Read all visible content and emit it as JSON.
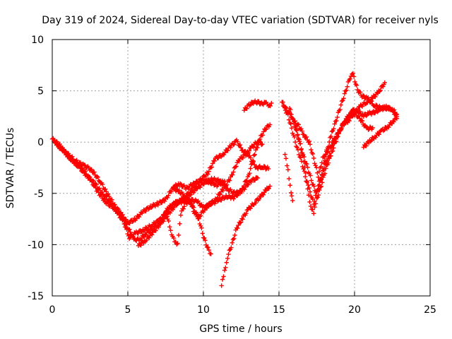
{
  "chart_data": {
    "type": "scatter",
    "title": "Day 319 of 2024, Sidereal Day-to-day VTEC variation (SDTVAR) for receiver nyls",
    "xlabel": "GPS time / hours",
    "ylabel": "SDTVAR / TECUs",
    "xlim": [
      0,
      25
    ],
    "ylim": [
      -15,
      10
    ],
    "xticks": [
      "0",
      "5",
      "10",
      "15",
      "20",
      "25"
    ],
    "yticks": [
      "-15",
      "-10",
      "-5",
      "0",
      "5",
      "10"
    ],
    "grid": true,
    "marker": "plus",
    "color": "#ff0000",
    "series": [
      {
        "points": [
          [
            0.0,
            0.3
          ],
          [
            0.5,
            -0.3
          ],
          [
            1.0,
            -1.3
          ],
          [
            1.5,
            -2.0
          ],
          [
            2.0,
            -2.6
          ],
          [
            2.5,
            -3.6
          ],
          [
            3.0,
            -4.8
          ],
          [
            3.5,
            -5.8
          ],
          [
            4.0,
            -6.4
          ],
          [
            4.5,
            -7.0
          ],
          [
            5.0,
            -8.3
          ],
          [
            5.4,
            -9.5
          ],
          [
            5.8,
            -9.5
          ],
          [
            6.2,
            -8.9
          ],
          [
            6.8,
            -8.3
          ],
          [
            7.3,
            -7.7
          ],
          [
            7.8,
            -6.8
          ],
          [
            8.3,
            -5.9
          ],
          [
            8.8,
            -5.3
          ],
          [
            9.3,
            -4.6
          ],
          [
            9.8,
            -3.7
          ],
          [
            10.3,
            -3.0
          ],
          [
            10.8,
            -1.6
          ],
          [
            11.3,
            -1.2
          ],
          [
            11.8,
            -0.4
          ],
          [
            12.2,
            0.1
          ],
          [
            12.6,
            -0.8
          ],
          [
            13.0,
            -1.3
          ],
          [
            13.5,
            -2.5
          ],
          [
            13.9,
            -2.4
          ],
          [
            14.3,
            -2.6
          ]
        ]
      },
      {
        "points": [
          [
            0.1,
            0.1
          ],
          [
            0.6,
            -0.6
          ],
          [
            1.2,
            -1.6
          ],
          [
            1.8,
            -2.5
          ],
          [
            2.3,
            -3.3
          ],
          [
            2.8,
            -4.0
          ],
          [
            3.3,
            -5.0
          ],
          [
            3.8,
            -5.8
          ],
          [
            4.3,
            -6.9
          ],
          [
            4.7,
            -7.7
          ],
          [
            5.1,
            -9.3
          ],
          [
            5.5,
            -8.9
          ],
          [
            6.0,
            -8.6
          ],
          [
            6.6,
            -8.1
          ],
          [
            7.1,
            -7.6
          ],
          [
            7.6,
            -6.8
          ],
          [
            8.1,
            -5.9
          ],
          [
            8.6,
            -5.7
          ],
          [
            9.1,
            -5.1
          ],
          [
            9.6,
            -4.5
          ],
          [
            10.1,
            -3.9
          ],
          [
            10.6,
            -3.6
          ],
          [
            11.1,
            -3.8
          ],
          [
            11.6,
            -4.6
          ],
          [
            12.1,
            -5.0
          ],
          [
            12.6,
            -4.7
          ],
          [
            13.1,
            -3.8
          ],
          [
            13.6,
            -3.5
          ]
        ]
      },
      {
        "points": [
          [
            0.3,
            -0.3
          ],
          [
            0.9,
            -1.0
          ],
          [
            1.5,
            -1.8
          ],
          [
            2.1,
            -2.3
          ],
          [
            2.6,
            -2.7
          ],
          [
            3.2,
            -3.9
          ],
          [
            3.7,
            -5.2
          ],
          [
            4.2,
            -6.3
          ],
          [
            4.6,
            -7.1
          ],
          [
            5.0,
            -7.9
          ],
          [
            5.5,
            -7.5
          ],
          [
            6.0,
            -6.8
          ],
          [
            6.5,
            -6.3
          ],
          [
            7.0,
            -6.0
          ],
          [
            7.5,
            -5.6
          ],
          [
            8.0,
            -4.4
          ],
          [
            8.4,
            -4.1
          ],
          [
            8.9,
            -4.5
          ],
          [
            9.4,
            -4.0
          ],
          [
            9.9,
            -3.7
          ],
          [
            10.4,
            -3.9
          ],
          [
            10.9,
            -4.2
          ],
          [
            11.4,
            -3.8
          ]
        ]
      },
      {
        "points": [
          [
            5.7,
            -10.1
          ],
          [
            6.1,
            -9.7
          ],
          [
            6.6,
            -8.9
          ],
          [
            7.1,
            -8.1
          ],
          [
            7.6,
            -6.5
          ],
          [
            8.1,
            -6.0
          ],
          [
            8.6,
            -5.8
          ],
          [
            9.1,
            -5.6
          ],
          [
            9.6,
            -5.8
          ],
          [
            10.0,
            -6.4
          ],
          [
            10.5,
            -6.0
          ],
          [
            11.0,
            -5.7
          ],
          [
            11.5,
            -5.3
          ],
          [
            12.0,
            -5.4
          ],
          [
            12.5,
            -4.8
          ],
          [
            13.0,
            -3.2
          ],
          [
            13.4,
            -1.1
          ],
          [
            13.8,
            0.5
          ],
          [
            14.1,
            1.3
          ],
          [
            14.4,
            1.7
          ]
        ]
      },
      {
        "points": [
          [
            7.5,
            -6.8
          ],
          [
            7.7,
            -7.8
          ],
          [
            7.9,
            -8.9
          ],
          [
            8.1,
            -9.8
          ],
          [
            8.3,
            -9.9
          ],
          [
            8.5,
            -7.0
          ],
          [
            8.8,
            -6.0
          ],
          [
            9.1,
            -5.7
          ],
          [
            9.4,
            -6.9
          ],
          [
            9.7,
            -7.3
          ],
          [
            10.0,
            -6.7
          ],
          [
            10.3,
            -6.2
          ],
          [
            10.8,
            -5.6
          ],
          [
            11.3,
            -4.6
          ],
          [
            11.8,
            -3.5
          ],
          [
            12.3,
            -1.8
          ],
          [
            12.8,
            -1.2
          ],
          [
            13.2,
            -0.5
          ],
          [
            13.6,
            0.1
          ],
          [
            13.9,
            -0.2
          ]
        ]
      },
      {
        "points": [
          [
            8.0,
            -4.5
          ],
          [
            8.4,
            -4.8
          ],
          [
            8.8,
            -5.3
          ],
          [
            9.3,
            -6.3
          ],
          [
            9.7,
            -7.5
          ],
          [
            10.0,
            -9.2
          ],
          [
            10.3,
            -10.4
          ],
          [
            10.5,
            -10.9
          ]
        ]
      },
      {
        "points": [
          [
            11.2,
            -14.0
          ],
          [
            11.4,
            -12.6
          ],
          [
            11.6,
            -11.2
          ],
          [
            11.9,
            -9.9
          ],
          [
            12.2,
            -8.4
          ],
          [
            12.6,
            -7.4
          ],
          [
            13.0,
            -6.5
          ],
          [
            13.4,
            -5.9
          ],
          [
            13.8,
            -5.3
          ],
          [
            14.2,
            -4.6
          ],
          [
            14.4,
            -4.3
          ]
        ]
      },
      {
        "points": [
          [
            12.7,
            3.1
          ],
          [
            13.0,
            3.6
          ],
          [
            13.3,
            3.9
          ],
          [
            13.6,
            3.9
          ],
          [
            13.9,
            3.7
          ],
          [
            14.1,
            4.0
          ],
          [
            14.3,
            3.4
          ],
          [
            14.5,
            3.8
          ]
        ]
      },
      {
        "points": [
          [
            15.2,
            3.9
          ],
          [
            15.5,
            3.2
          ],
          [
            15.8,
            2.6
          ],
          [
            16.1,
            1.4
          ],
          [
            16.4,
            -0.2
          ],
          [
            16.7,
            -2.3
          ],
          [
            16.9,
            -4.7
          ],
          [
            17.1,
            -6.2
          ],
          [
            17.3,
            -6.9
          ],
          [
            17.5,
            -5.6
          ],
          [
            17.8,
            -4.2
          ],
          [
            18.1,
            -2.6
          ],
          [
            18.5,
            -1.0
          ],
          [
            18.9,
            0.7
          ],
          [
            19.2,
            1.7
          ],
          [
            19.6,
            2.1
          ],
          [
            20.0,
            2.9
          ],
          [
            20.4,
            3.5
          ],
          [
            20.8,
            3.9
          ],
          [
            21.2,
            4.3
          ],
          [
            21.6,
            4.9
          ],
          [
            22.0,
            5.8
          ]
        ]
      },
      {
        "points": [
          [
            15.3,
            3.5
          ],
          [
            15.6,
            2.6
          ],
          [
            15.9,
            1.0
          ],
          [
            16.2,
            -0.6
          ],
          [
            16.5,
            -1.9
          ],
          [
            16.8,
            -3.7
          ],
          [
            17.0,
            -4.6
          ],
          [
            17.3,
            -6.0
          ],
          [
            17.6,
            -4.2
          ],
          [
            17.9,
            -2.9
          ],
          [
            18.3,
            -1.3
          ],
          [
            18.6,
            0.1
          ],
          [
            19.0,
            1.1
          ],
          [
            19.5,
            2.3
          ],
          [
            19.9,
            3.1
          ],
          [
            20.2,
            3.0
          ],
          [
            20.6,
            2.6
          ],
          [
            21.0,
            2.8
          ],
          [
            21.3,
            2.9
          ],
          [
            21.7,
            3.2
          ],
          [
            22.1,
            3.4
          ],
          [
            22.5,
            3.2
          ],
          [
            22.8,
            2.7
          ]
        ]
      },
      {
        "points": [
          [
            15.4,
            -1.2
          ],
          [
            15.6,
            -2.8
          ],
          [
            15.8,
            -4.8
          ],
          [
            15.9,
            -5.7
          ]
        ]
      },
      {
        "points": [
          [
            15.7,
            3.3
          ],
          [
            16.0,
            1.9
          ],
          [
            16.3,
            0.4
          ],
          [
            16.6,
            -1.3
          ],
          [
            16.9,
            -2.5
          ],
          [
            17.2,
            -4.0
          ],
          [
            17.5,
            -5.0
          ],
          [
            17.8,
            -3.6
          ],
          [
            18.1,
            -1.2
          ],
          [
            18.5,
            0.9
          ],
          [
            18.8,
            2.2
          ],
          [
            19.1,
            3.6
          ],
          [
            19.4,
            4.9
          ],
          [
            19.7,
            6.3
          ],
          [
            19.9,
            6.6
          ],
          [
            20.2,
            5.1
          ],
          [
            20.5,
            4.5
          ],
          [
            20.9,
            4.2
          ],
          [
            21.3,
            3.6
          ],
          [
            21.6,
            3.4
          ],
          [
            22.0,
            3.3
          ],
          [
            22.4,
            3.3
          ],
          [
            22.8,
            2.5
          ]
        ]
      },
      {
        "points": [
          [
            16.0,
            2.0
          ],
          [
            16.3,
            1.6
          ],
          [
            16.7,
            0.6
          ],
          [
            17.0,
            0.0
          ],
          [
            17.3,
            -1.6
          ],
          [
            17.6,
            -3.3
          ],
          [
            17.9,
            -1.6
          ],
          [
            18.2,
            -0.9
          ],
          [
            18.6,
            0.0
          ],
          [
            19.0,
            1.0
          ],
          [
            19.4,
            2.2
          ],
          [
            19.8,
            2.8
          ],
          [
            20.1,
            2.7
          ],
          [
            20.4,
            2.2
          ],
          [
            20.8,
            1.3
          ],
          [
            21.2,
            1.4
          ]
        ]
      },
      {
        "points": [
          [
            20.6,
            -0.5
          ],
          [
            21.0,
            0.1
          ],
          [
            21.4,
            0.6
          ],
          [
            21.8,
            1.1
          ],
          [
            22.2,
            1.5
          ],
          [
            22.6,
            2.1
          ],
          [
            22.8,
            2.3
          ]
        ]
      }
    ]
  }
}
